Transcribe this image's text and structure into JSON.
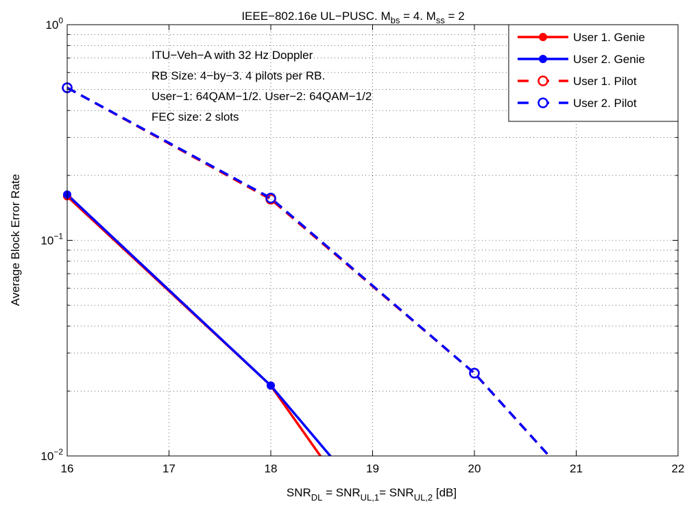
{
  "chart_data": {
    "type": "line",
    "title": {
      "base": "IEEE−802.16e UL−PUSC. M",
      "sub1": "bs",
      "mid": " = 4. M",
      "sub2": "ss",
      "tail": " = 2"
    },
    "xlabel": {
      "p1": "SNR",
      "s1": "DL",
      "p2": " = SNR",
      "s2": "UL,1",
      "p3": "= SNR",
      "s3": "UL,2",
      "p4": " [dB]"
    },
    "ylabel": "Average Block Error Rate",
    "xlim": [
      16,
      22
    ],
    "ylim": [
      0.01,
      1
    ],
    "yscale": "log",
    "grid": true,
    "legend_position": "top-right",
    "x_ticks": [
      "16",
      "17",
      "18",
      "19",
      "20",
      "21",
      "22"
    ],
    "y_ticks": [
      {
        "base": "10",
        "exp": "0",
        "value": 1
      },
      {
        "base": "10",
        "exp": "−1",
        "value": 0.1
      },
      {
        "base": "10",
        "exp": "−2",
        "value": 0.01
      }
    ],
    "annotations": [
      "ITU−Veh−A with 32 Hz Doppler",
      "RB Size: 4−by−3. 4 pilots per RB.",
      "User−1: 64QAM−1/2. User−2: 64QAM−1/2",
      "FEC size: 2 slots"
    ],
    "series": [
      {
        "name": "User 1. Genie",
        "color": "#ff0000",
        "dash": "solid",
        "marker": "filled-circle",
        "x": [
          16,
          18,
          18.5
        ],
        "y": [
          0.16,
          0.0212,
          0.0098
        ],
        "marker_x": [
          16,
          18
        ]
      },
      {
        "name": "User 2. Genie",
        "color": "#0000ff",
        "dash": "solid",
        "marker": "filled-circle",
        "x": [
          16,
          18,
          18.6
        ],
        "y": [
          0.163,
          0.0212,
          0.0098
        ],
        "marker_x": [
          16,
          18
        ]
      },
      {
        "name": "User 1. Pilot",
        "color": "#ff0000",
        "dash": "dashed",
        "marker": "open-circle",
        "x": [
          16,
          18,
          20,
          20.75
        ],
        "y": [
          0.51,
          0.155,
          0.0242,
          0.0098
        ],
        "marker_x": [
          16,
          18,
          20
        ]
      },
      {
        "name": "User 2. Pilot",
        "color": "#0000ff",
        "dash": "dashed",
        "marker": "open-circle",
        "x": [
          16,
          18,
          20,
          20.75
        ],
        "y": [
          0.51,
          0.157,
          0.0242,
          0.0098
        ],
        "marker_x": [
          16,
          18,
          20
        ]
      }
    ]
  }
}
